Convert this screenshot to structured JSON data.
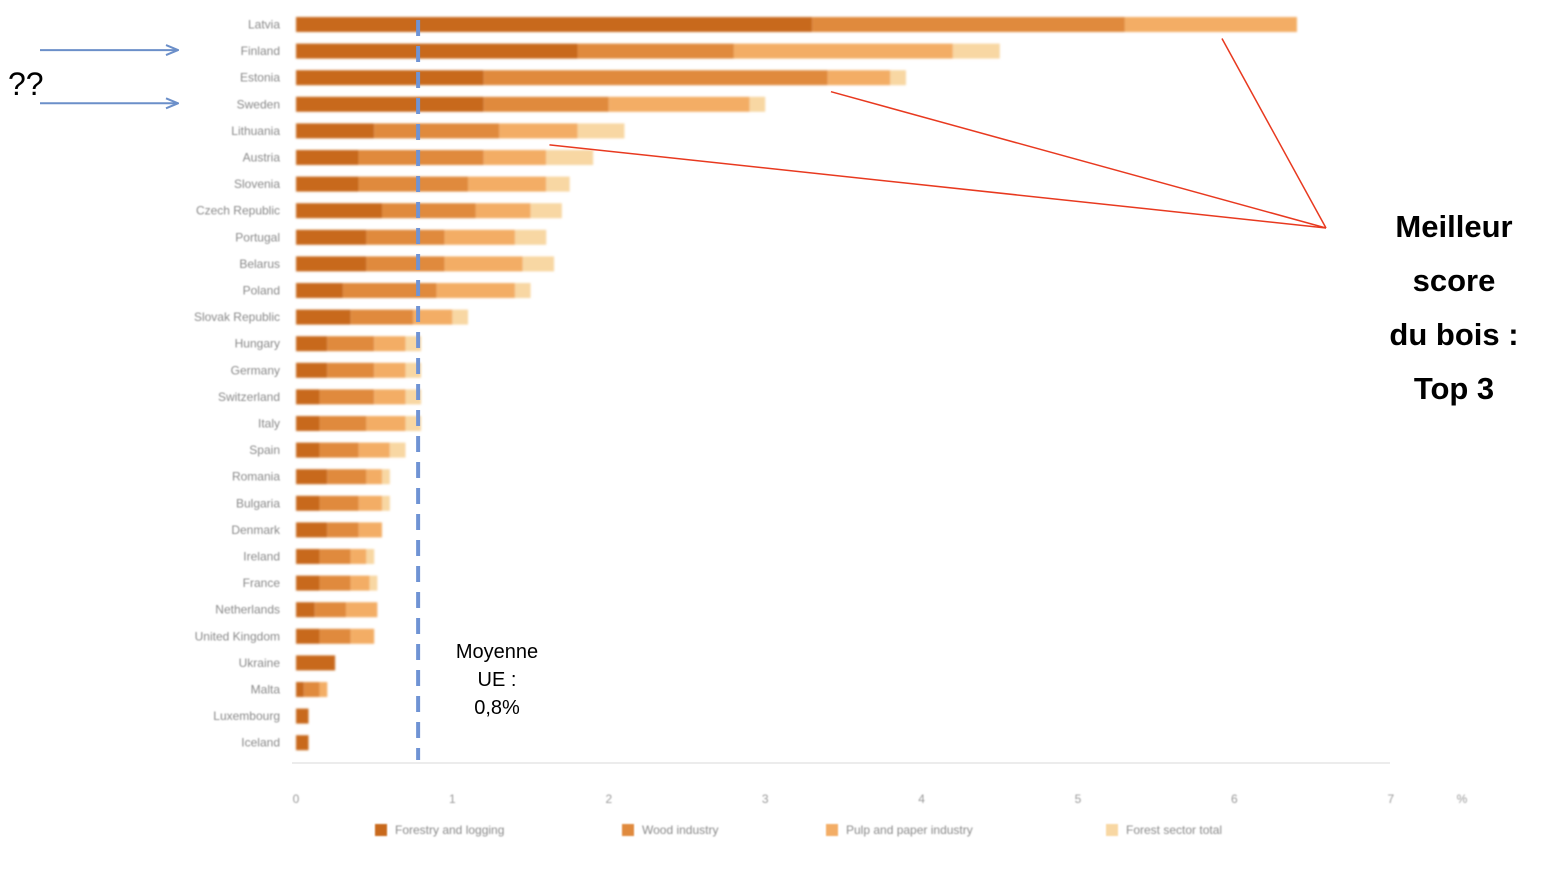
{
  "chart_data": {
    "type": "bar",
    "orientation": "horizontal",
    "stacked": true,
    "categories": [
      "Latvia",
      "Finland",
      "Estonia",
      "Sweden",
      "Lithuania",
      "Austria",
      "Slovenia",
      "Czech Republic",
      "Portugal",
      "Belarus",
      "Poland",
      "Slovak Republic",
      "Hungary",
      "Germany",
      "Switzerland",
      "Italy",
      "Spain",
      "Romania",
      "Bulgaria",
      "Denmark",
      "Ireland",
      "France",
      "Netherlands",
      "United Kingdom",
      "Ukraine",
      "Malta",
      "Luxembourg",
      "Iceland"
    ],
    "series": [
      {
        "name": "Forestry and logging",
        "color": "#c8691f",
        "values": [
          3.3,
          1.8,
          1.2,
          1.2,
          0.5,
          0.4,
          0.4,
          0.55,
          0.45,
          0.45,
          0.3,
          0.35,
          0.2,
          0.2,
          0.15,
          0.15,
          0.15,
          0.2,
          0.15,
          0.2,
          0.15,
          0.15,
          0.12,
          0.15,
          0.25,
          0.05,
          0.08,
          0.08
        ]
      },
      {
        "name": "Wood industry",
        "color": "#e08a3c",
        "values": [
          2.0,
          1.0,
          2.2,
          0.8,
          0.8,
          0.8,
          0.7,
          0.6,
          0.5,
          0.5,
          0.6,
          0.4,
          0.3,
          0.3,
          0.35,
          0.3,
          0.25,
          0.25,
          0.25,
          0.2,
          0.2,
          0.2,
          0.2,
          0.2,
          0.0,
          0.1,
          0.0,
          0.0
        ]
      },
      {
        "name": "Pulp and paper industry",
        "color": "#f3ad65",
        "values": [
          1.1,
          1.4,
          0.4,
          0.9,
          0.5,
          0.4,
          0.5,
          0.35,
          0.45,
          0.5,
          0.5,
          0.25,
          0.2,
          0.2,
          0.2,
          0.25,
          0.2,
          0.1,
          0.15,
          0.15,
          0.1,
          0.12,
          0.2,
          0.15,
          0.0,
          0.05,
          0.0,
          0.0
        ]
      },
      {
        "name": "Forest sector total",
        "color": "#f8d7a3",
        "values": [
          0.0,
          0.3,
          0.1,
          0.1,
          0.3,
          0.3,
          0.15,
          0.2,
          0.2,
          0.2,
          0.1,
          0.1,
          0.1,
          0.1,
          0.1,
          0.1,
          0.1,
          0.05,
          0.05,
          0.0,
          0.05,
          0.05,
          0.0,
          0.0,
          0.0,
          0.0,
          0.0,
          0.0
        ]
      }
    ],
    "x_ticks": [
      "0",
      "1",
      "2",
      "3",
      "4",
      "5",
      "6",
      "7"
    ],
    "x_unit": "%",
    "xlim": [
      0,
      7
    ],
    "grid": false,
    "legend_position": "bottom",
    "reference_line": {
      "value": 0.8,
      "color": "#6f93d4"
    }
  },
  "annotations": {
    "question_marks": "??",
    "average_label": [
      "Moyenne",
      "UE :",
      "0,8%"
    ],
    "callout_lines": [
      "Meilleur",
      "score",
      "du bois :",
      "Top 3"
    ],
    "callout_targets": [
      "Latvia",
      "Estonia",
      "Lithuania"
    ],
    "arrow_targets": [
      "Finland",
      "Sweden"
    ]
  }
}
